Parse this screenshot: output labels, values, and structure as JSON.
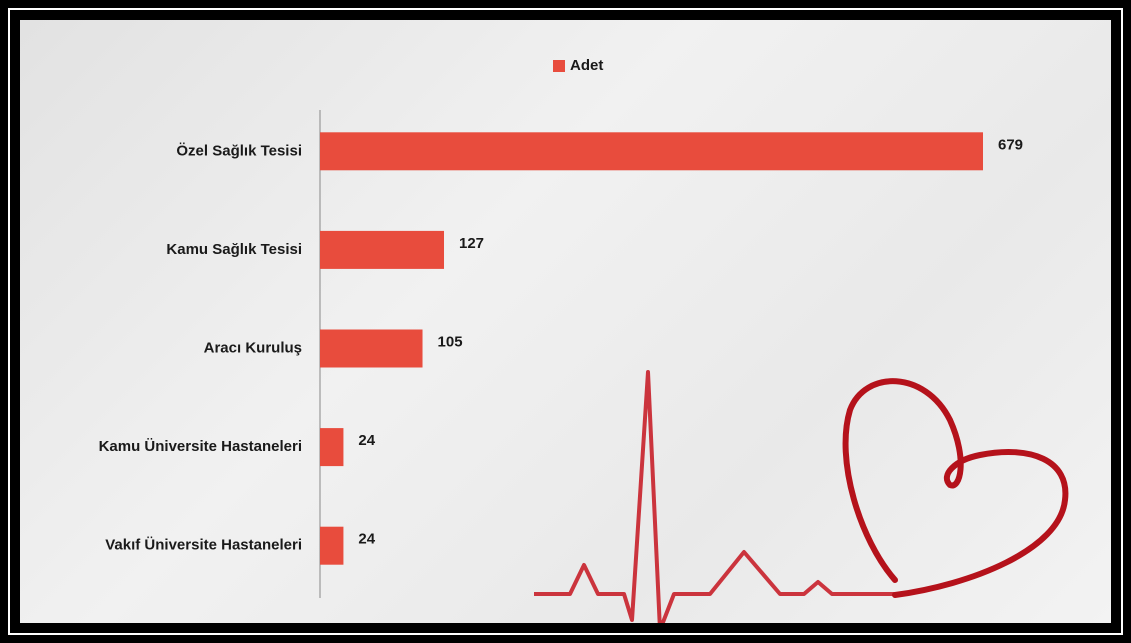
{
  "chart_data": {
    "type": "bar",
    "orientation": "horizontal",
    "categories": [
      "Özel Sağlık Tesisi",
      "Kamu Sağlık Tesisi",
      "Aracı Kuruluş",
      "Kamu Üniversite Hastaneleri",
      "Vakıf Üniversite Hastaneleri"
    ],
    "series": [
      {
        "name": "Adet",
        "color": "#e84c3d",
        "values": [
          679,
          127,
          105,
          24,
          24
        ]
      }
    ],
    "legend": "top"
  }
}
